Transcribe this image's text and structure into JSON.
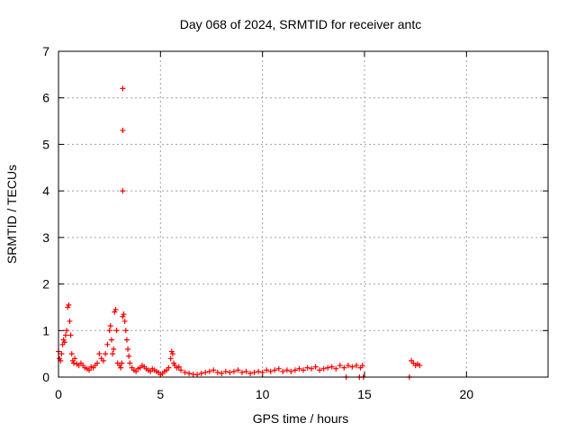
{
  "chart_data": {
    "type": "scatter",
    "title": "Day 068 of 2024, SRMTID for receiver antc",
    "xlabel": "GPS time / hours",
    "ylabel": "SRMTID / TECUs",
    "xlim": [
      0,
      24
    ],
    "ylim": [
      0,
      7
    ],
    "xticks": [
      0,
      5,
      10,
      15,
      20
    ],
    "xtick_labels": [
      "0",
      "5",
      "10",
      "15",
      "20"
    ],
    "yticks": [
      0,
      1,
      2,
      3,
      4,
      5,
      6,
      7
    ],
    "ytick_labels": [
      "0",
      "1",
      "2",
      "3",
      "4",
      "5",
      "6",
      "7"
    ],
    "grid": true,
    "marker": "plus",
    "series": [
      {
        "name": "SRMTID",
        "color": "#ff0000",
        "x": [
          0.0,
          0.05,
          0.1,
          0.15,
          0.2,
          0.25,
          0.3,
          0.35,
          0.4,
          0.45,
          0.5,
          0.55,
          0.6,
          0.65,
          0.7,
          0.75,
          0.8,
          0.9,
          1.0,
          1.1,
          1.2,
          1.3,
          1.4,
          1.5,
          1.6,
          1.7,
          1.8,
          1.9,
          2.0,
          2.1,
          2.2,
          2.3,
          2.4,
          2.5,
          2.55,
          2.6,
          2.65,
          2.7,
          2.75,
          2.8,
          2.85,
          2.9,
          3.0,
          3.05,
          3.1,
          3.15,
          3.2,
          3.25,
          3.3,
          3.35,
          3.4,
          3.45,
          3.5,
          3.6,
          3.7,
          3.8,
          3.9,
          4.0,
          4.1,
          4.2,
          4.3,
          4.4,
          4.5,
          4.6,
          4.7,
          4.8,
          4.9,
          5.0,
          5.1,
          5.2,
          5.3,
          5.4,
          5.5,
          5.55,
          5.6,
          5.65,
          5.7,
          5.8,
          5.9,
          6.0,
          6.2,
          6.4,
          6.6,
          6.8,
          7.0,
          7.2,
          7.4,
          7.6,
          7.8,
          8.0,
          8.2,
          8.4,
          8.6,
          8.8,
          9.0,
          9.2,
          9.4,
          9.6,
          9.8,
          10.0,
          10.2,
          10.4,
          10.6,
          10.8,
          11.0,
          11.2,
          11.4,
          11.6,
          11.8,
          12.0,
          12.2,
          12.4,
          12.6,
          12.8,
          13.0,
          13.2,
          13.4,
          13.6,
          13.8,
          14.0,
          14.2,
          14.4,
          14.6,
          14.8,
          14.9,
          14.1,
          14.75,
          14.95,
          17.2,
          17.3,
          17.4,
          17.5,
          17.6,
          17.7,
          3.15,
          3.15,
          3.15
        ],
        "y": [
          0.55,
          0.4,
          0.35,
          0.5,
          0.7,
          0.8,
          0.75,
          0.9,
          1.0,
          1.5,
          1.55,
          1.2,
          0.9,
          0.5,
          0.35,
          0.3,
          0.4,
          0.28,
          0.25,
          0.3,
          0.25,
          0.2,
          0.18,
          0.15,
          0.22,
          0.2,
          0.25,
          0.3,
          0.5,
          0.4,
          0.35,
          0.5,
          0.7,
          1.0,
          1.1,
          0.8,
          0.5,
          0.6,
          1.4,
          1.45,
          1.0,
          0.3,
          0.25,
          0.2,
          0.3,
          1.3,
          1.35,
          1.2,
          1.0,
          0.8,
          0.6,
          0.45,
          0.3,
          0.2,
          0.15,
          0.12,
          0.18,
          0.2,
          0.25,
          0.22,
          0.18,
          0.15,
          0.12,
          0.18,
          0.15,
          0.12,
          0.1,
          0.05,
          0.08,
          0.12,
          0.15,
          0.2,
          0.4,
          0.55,
          0.5,
          0.3,
          0.25,
          0.2,
          0.22,
          0.15,
          0.1,
          0.08,
          0.06,
          0.05,
          0.08,
          0.1,
          0.12,
          0.15,
          0.1,
          0.08,
          0.12,
          0.1,
          0.12,
          0.15,
          0.1,
          0.12,
          0.08,
          0.1,
          0.12,
          0.1,
          0.15,
          0.12,
          0.15,
          0.18,
          0.12,
          0.15,
          0.12,
          0.15,
          0.18,
          0.15,
          0.2,
          0.18,
          0.22,
          0.15,
          0.18,
          0.2,
          0.22,
          0.18,
          0.25,
          0.2,
          0.25,
          0.22,
          0.25,
          0.2,
          0.25,
          0.0,
          0.0,
          0.0,
          0.0,
          0.35,
          0.3,
          0.25,
          0.28,
          0.25,
          6.2,
          5.3,
          4.0
        ]
      }
    ]
  }
}
